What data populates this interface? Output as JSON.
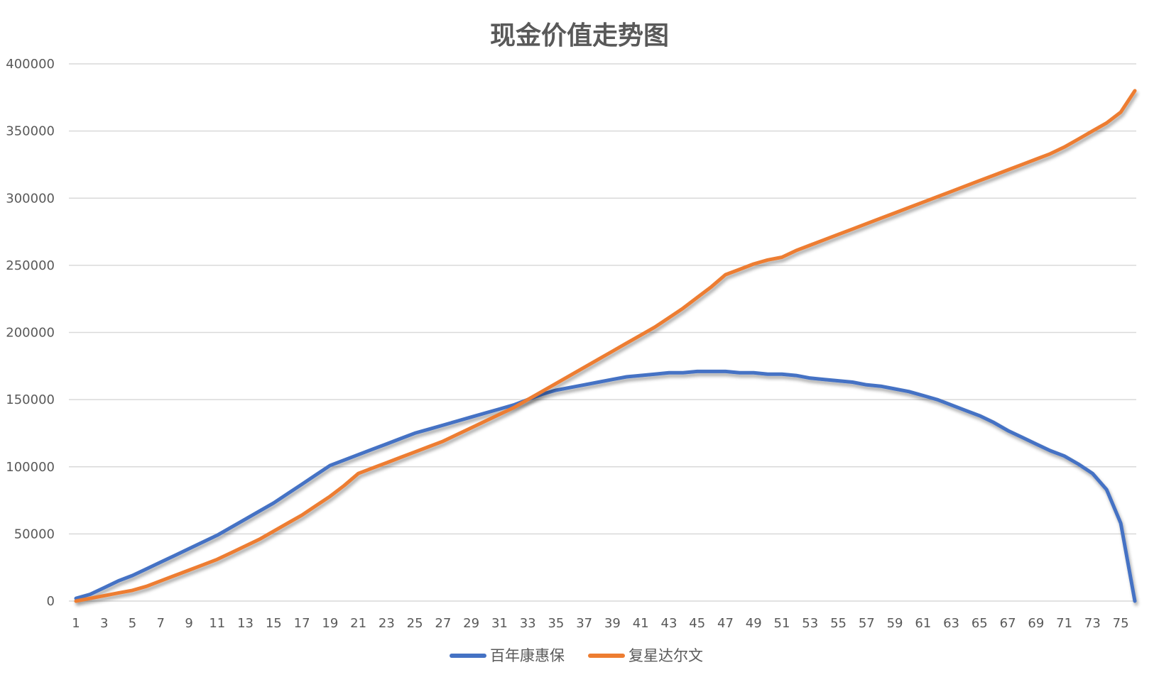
{
  "chart_data": {
    "type": "line",
    "title": "现金价值走势图",
    "xlabel": "",
    "ylabel": "",
    "ylim": [
      0,
      400000
    ],
    "yticks": [
      0,
      50000,
      100000,
      150000,
      200000,
      250000,
      300000,
      350000,
      400000
    ],
    "grid": true,
    "legend_position": "bottom",
    "x": [
      1,
      2,
      3,
      4,
      5,
      6,
      7,
      8,
      9,
      10,
      11,
      12,
      13,
      14,
      15,
      16,
      17,
      18,
      19,
      20,
      21,
      22,
      23,
      24,
      25,
      26,
      27,
      28,
      29,
      30,
      31,
      32,
      33,
      34,
      35,
      36,
      37,
      38,
      39,
      40,
      41,
      42,
      43,
      44,
      45,
      46,
      47,
      48,
      49,
      50,
      51,
      52,
      53,
      54,
      55,
      56,
      57,
      58,
      59,
      60,
      61,
      62,
      63,
      64,
      65,
      66,
      67,
      68,
      69,
      70,
      71,
      72,
      73,
      74,
      75,
      76
    ],
    "xtick_labels": [
      "1",
      "3",
      "5",
      "7",
      "9",
      "11",
      "13",
      "15",
      "17",
      "19",
      "21",
      "23",
      "25",
      "27",
      "29",
      "31",
      "33",
      "35",
      "37",
      "39",
      "41",
      "43",
      "45",
      "47",
      "49",
      "51",
      "53",
      "55",
      "57",
      "59",
      "61",
      "63",
      "65",
      "67",
      "69",
      "71",
      "73",
      "75"
    ],
    "series": [
      {
        "name": "百年康惠保",
        "color": "#4472C4",
        "values": [
          2000,
          5000,
          10000,
          15000,
          19000,
          24000,
          29000,
          34000,
          39000,
          44000,
          49000,
          55000,
          61000,
          67000,
          73000,
          80000,
          87000,
          94000,
          101000,
          105000,
          109000,
          113000,
          117000,
          121000,
          125000,
          128000,
          131000,
          134000,
          137000,
          140000,
          143000,
          146000,
          150000,
          154000,
          157000,
          159000,
          161000,
          163000,
          165000,
          167000,
          168000,
          169000,
          170000,
          170000,
          171000,
          171000,
          171000,
          170000,
          170000,
          169000,
          169000,
          168000,
          166000,
          165000,
          164000,
          163000,
          161000,
          160000,
          158000,
          156000,
          153000,
          150000,
          146000,
          142000,
          138000,
          133000,
          127000,
          122000,
          117000,
          112000,
          108000,
          102000,
          95000,
          83000,
          58000,
          0
        ]
      },
      {
        "name": "复星达尔文",
        "color": "#ED7D31",
        "values": [
          0,
          2000,
          4000,
          6000,
          8000,
          11000,
          15000,
          19000,
          23000,
          27000,
          31000,
          36000,
          41000,
          46000,
          52000,
          58000,
          64000,
          71000,
          78000,
          86000,
          95000,
          99000,
          103000,
          107000,
          111000,
          115000,
          119000,
          124000,
          129000,
          134000,
          139000,
          144000,
          150000,
          156000,
          162000,
          168000,
          174000,
          180000,
          186000,
          192000,
          198000,
          204000,
          211000,
          218000,
          226000,
          234000,
          243000,
          247000,
          251000,
          254000,
          256000,
          261000,
          265000,
          269000,
          273000,
          277000,
          281000,
          285000,
          289000,
          293000,
          297000,
          301000,
          305000,
          309000,
          313000,
          317000,
          321000,
          325000,
          329000,
          333000,
          338000,
          344000,
          350000,
          356000,
          364000,
          380000
        ]
      }
    ]
  },
  "legend": {
    "items": [
      {
        "label": "百年康惠保",
        "color": "#4472C4"
      },
      {
        "label": "复星达尔文",
        "color": "#ED7D31"
      }
    ]
  }
}
